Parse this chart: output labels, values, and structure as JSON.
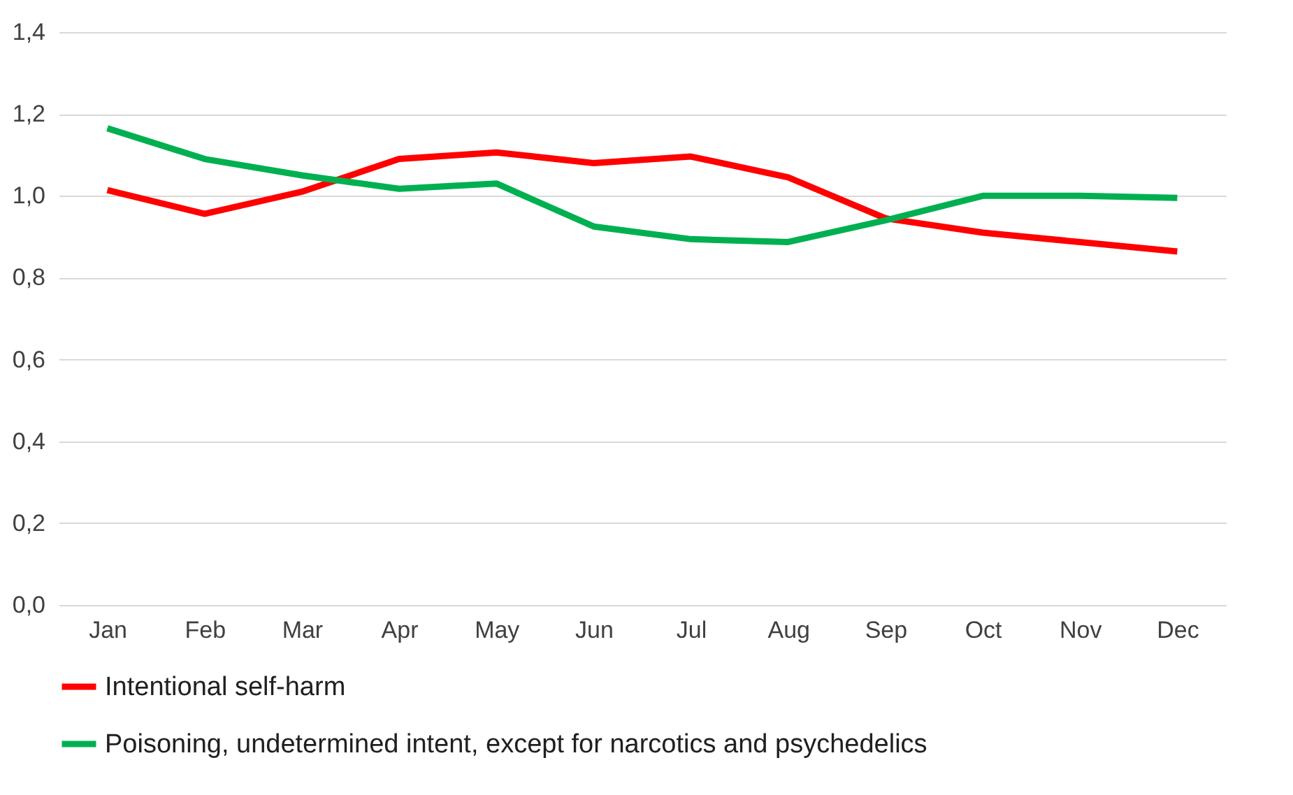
{
  "chart_data": {
    "type": "line",
    "categories": [
      "Jan",
      "Feb",
      "Mar",
      "Apr",
      "May",
      "Jun",
      "Jul",
      "Aug",
      "Sep",
      "Oct",
      "Nov",
      "Dec"
    ],
    "series": [
      {
        "name": "Intentional self-harm",
        "color": "#ff0000",
        "values": [
          1.014,
          0.956,
          1.01,
          1.09,
          1.106,
          1.08,
          1.096,
          1.045,
          0.945,
          0.91,
          0.887,
          0.864
        ]
      },
      {
        "name": "Poisoning, undetermined intent, except for narcotics and psychedelics",
        "color": "#00b050",
        "values": [
          1.165,
          1.09,
          1.05,
          1.017,
          1.03,
          0.925,
          0.894,
          0.887,
          0.94,
          1.0,
          1.0,
          0.995
        ]
      }
    ],
    "ylim": [
      0,
      1.4
    ],
    "yticks": [
      {
        "value": 0,
        "label": "0,0"
      },
      {
        "value": 0.2,
        "label": "0,2"
      },
      {
        "value": 0.4,
        "label": "0,4"
      },
      {
        "value": 0.6,
        "label": "0,6"
      },
      {
        "value": 0.8,
        "label": "0,8"
      },
      {
        "value": 1.0,
        "label": "1,0"
      },
      {
        "value": 1.2,
        "label": "1,2"
      },
      {
        "value": 1.4,
        "label": "1,4"
      }
    ],
    "grid": "y",
    "legend": "bottom",
    "marker": "none",
    "line_style": "solid"
  }
}
